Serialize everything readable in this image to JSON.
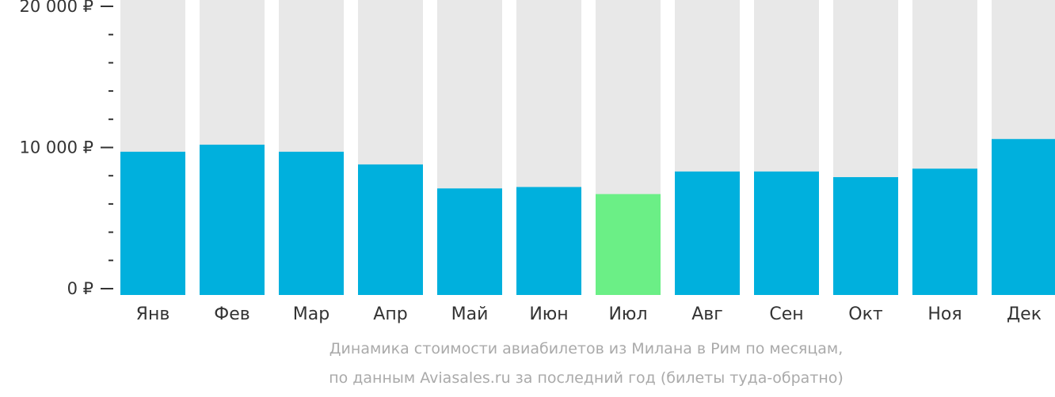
{
  "chart_data": {
    "type": "bar",
    "title": "Динамика стоимости авиабилетов из Милана в Рим по месяцам,",
    "subtitle": "по данным Aviasales.ru за последний год (билеты туда-обратно)",
    "categories": [
      "Янв",
      "Фев",
      "Мар",
      "Апр",
      "Май",
      "Июн",
      "Июл",
      "Авг",
      "Сен",
      "Окт",
      "Ноя",
      "Дек"
    ],
    "values": [
      9700,
      10200,
      9700,
      8800,
      7100,
      7200,
      6700,
      8300,
      8300,
      7900,
      8500,
      10600
    ],
    "highlight_index": 6,
    "ylim": [
      0,
      20000
    ],
    "yticks": [
      {
        "value": 0,
        "label": "0 ₽"
      },
      {
        "value": 10000,
        "label": "10 000 ₽"
      },
      {
        "value": 20000,
        "label": "20 000 ₽"
      }
    ],
    "minor_step": 2000,
    "xlabel": "",
    "ylabel": "",
    "colors": {
      "bar": "#00b0dd",
      "highlight": "#6bef86",
      "background": "#e8e8e8",
      "tick": "#333333"
    }
  }
}
